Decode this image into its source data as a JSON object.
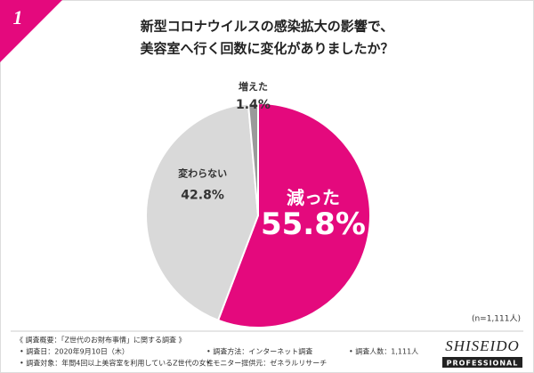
{
  "badge": "1",
  "chart_data": {
    "type": "pie",
    "title": [
      "新型コロナウイルスの感染拡大の影響で、",
      "美容室へ行く回数に変化がありましたか？"
    ],
    "categories": [
      "減った",
      "変わらない",
      "増えた"
    ],
    "values": [
      55.8,
      42.8,
      1.4
    ],
    "value_labels": [
      "55.8%",
      "42.8%",
      "1.4%"
    ],
    "colors": [
      "#e4097d",
      "#d9d9d9",
      "#9a9a9a"
    ],
    "label_colors": [
      "#ffffff",
      "#333333",
      "#333333"
    ],
    "note": "(n=1,111人)"
  },
  "footer": {
    "heading": "《 調査概要：「Z世代のお財布事情」に関する調査 》",
    "rows": [
      [
        "• 調査日：2020年9月10日（木）",
        "• 調査方法：インターネット調査",
        "• 調査人数：1,111人"
      ],
      [
        "• 調査対象：年間4回以上美容室を利用しているZ世代の女性",
        "• モニター提供元：ゼネラルリサーチ"
      ]
    ]
  },
  "logo": {
    "brand": "SHISEIDO",
    "line": "PROFESSIONAL"
  }
}
